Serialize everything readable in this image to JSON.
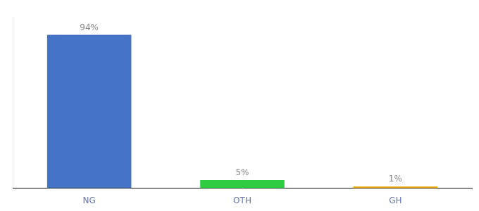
{
  "chart_data": {
    "type": "bar",
    "categories": [
      "NG",
      "OTH",
      "GH"
    ],
    "values": [
      94,
      5,
      1
    ],
    "value_labels": [
      "94%",
      "5%",
      "1%"
    ],
    "colors": [
      "#4472c4",
      "#2ecc40",
      "#f0a500"
    ],
    "ylim": [
      0,
      105
    ],
    "data_labels": true,
    "tick_labels": "x",
    "grid": false
  }
}
